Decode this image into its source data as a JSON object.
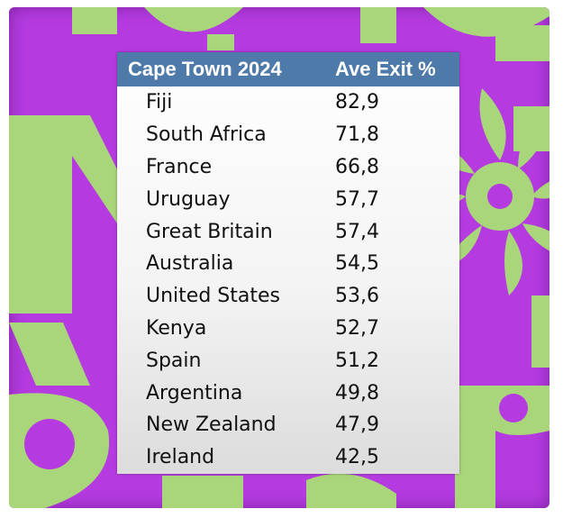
{
  "table": {
    "header": {
      "country_label": "Cape Town 2024",
      "value_label": "Ave Exit %"
    },
    "rows": [
      {
        "country": "Fiji",
        "value": "82,9"
      },
      {
        "country": "South Africa",
        "value": "71,8"
      },
      {
        "country": "France",
        "value": "66,8"
      },
      {
        "country": "Uruguay",
        "value": "57,7"
      },
      {
        "country": "Great Britain",
        "value": "57,4"
      },
      {
        "country": "Australia",
        "value": "54,5"
      },
      {
        "country": "United States",
        "value": "53,6"
      },
      {
        "country": "Kenya",
        "value": "52,7"
      },
      {
        "country": "Spain",
        "value": "51,2"
      },
      {
        "country": "Argentina",
        "value": "49,8"
      },
      {
        "country": "New Zealand",
        "value": "47,9"
      },
      {
        "country": "Ireland",
        "value": "42,5"
      }
    ]
  },
  "colors": {
    "background": "#b53be0",
    "graphic": "#a9d67a",
    "header": "#4e7aa9"
  }
}
